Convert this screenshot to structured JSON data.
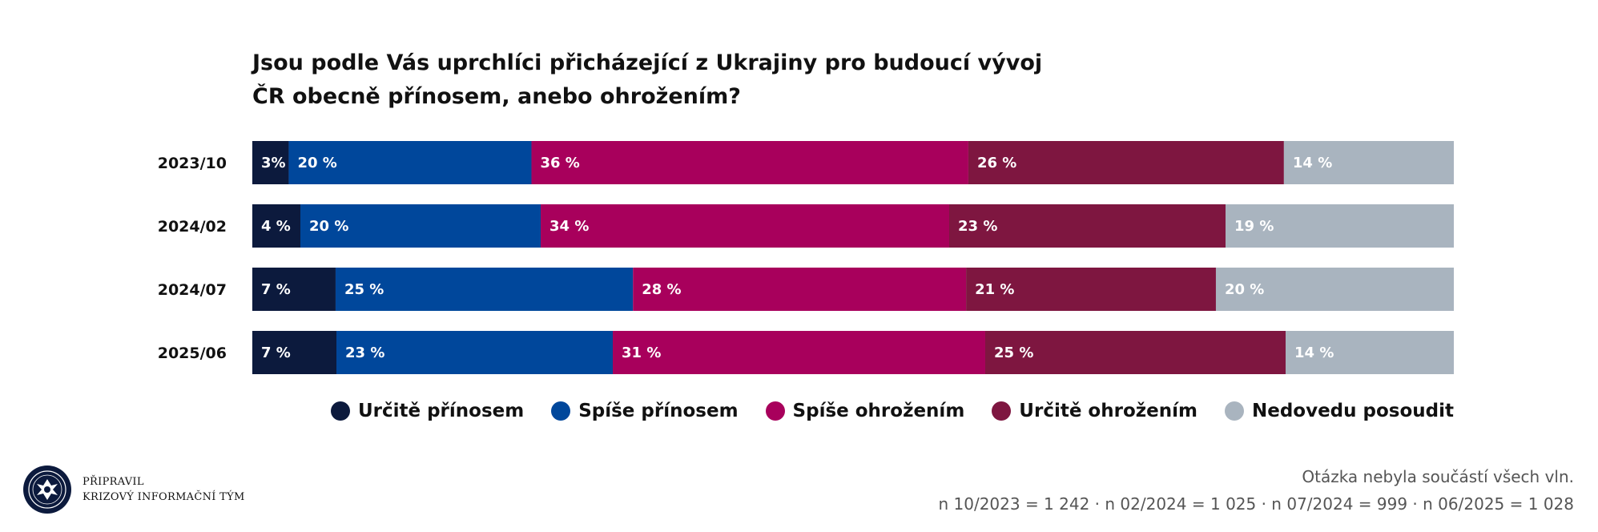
{
  "title": "Jsou podle Vás uprchlíci přicházející z Ukrajiny pro budoucí vývoj ČR obecně přínosem, anebo ohrožením?",
  "chart_data": {
    "type": "bar",
    "orientation": "horizontal",
    "stacked": true,
    "normalized": true,
    "categories": [
      "2023/10",
      "2024/02",
      "2024/07",
      "2025/06"
    ],
    "series": [
      {
        "name": "Určitě přínosem",
        "color": "#0c1a3d",
        "values": [
          3,
          4,
          7,
          7
        ],
        "labels": [
          "3%",
          "4 %",
          "7 %",
          "7 %"
        ]
      },
      {
        "name": "Spíše přínosem",
        "color": "#00479b",
        "values": [
          20,
          20,
          25,
          23
        ],
        "labels": [
          "20 %",
          "20 %",
          "25 %",
          "23 %"
        ]
      },
      {
        "name": "Spíše ohrožením",
        "color": "#a8005c",
        "values": [
          36,
          34,
          28,
          31
        ],
        "labels": [
          "36 %",
          "34 %",
          "28 %",
          "31 %"
        ]
      },
      {
        "name": "Určitě ohrožením",
        "color": "#7e1640",
        "values": [
          26,
          23,
          21,
          25
        ],
        "labels": [
          "26 %",
          "23 %",
          "21 %",
          "25 %"
        ]
      },
      {
        "name": "Nedovedu posoudit",
        "color": "#a9b4bf",
        "values": [
          14,
          19,
          20,
          14
        ],
        "labels": [
          "14 %",
          "19 %",
          "20 %",
          "14 %"
        ]
      }
    ],
    "legend_position": "bottom-right",
    "grid": false
  },
  "footer": {
    "credit_line1": "PŘIPRAVIL",
    "credit_line2": "KRIZOVÝ INFORMAČNÍ TÝM",
    "note": "Otázka nebyla součástí všech vln.",
    "sample_sizes": "n 10/2023 = 1 242 · n 02/2024 = 1 025 · n 07/2024 = 999 · n 06/2025 = 1 028"
  }
}
